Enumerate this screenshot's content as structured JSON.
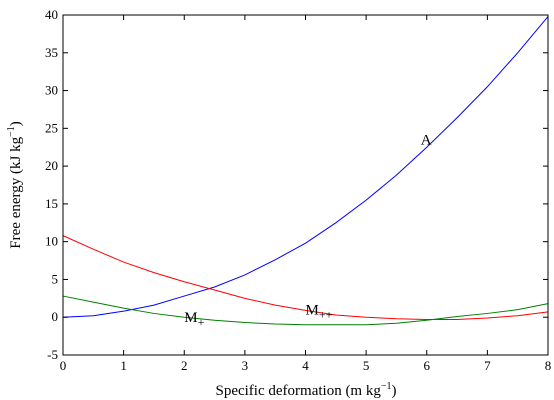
{
  "chart_data": {
    "type": "line",
    "title": "",
    "xlabel": "Specific deformation (m kg",
    "xlabel_sup": "−1",
    "xlabel_end": ")",
    "ylabel": "Free energy (kJ kg",
    "ylabel_sup": "−1",
    "ylabel_end": ")",
    "xlim": [
      0,
      8
    ],
    "ylim": [
      -5,
      40
    ],
    "xticks": [
      0,
      1,
      2,
      3,
      4,
      5,
      6,
      7,
      8
    ],
    "yticks": [
      -5,
      0,
      5,
      10,
      15,
      20,
      25,
      30,
      35,
      40
    ],
    "xtick_labels": [
      "0",
      "1",
      "2",
      "3",
      "4",
      "5",
      "6",
      "7",
      "8"
    ],
    "ytick_labels": [
      "-5",
      "0",
      "5",
      "10",
      "15",
      "20",
      "25",
      "30",
      "35",
      "40"
    ],
    "grid": false,
    "legend": "none",
    "x": [
      0,
      0.5,
      1,
      1.5,
      2,
      2.5,
      3,
      3.5,
      4,
      4.5,
      5,
      5.5,
      6,
      6.5,
      7,
      7.5,
      8
    ],
    "series": [
      {
        "color": "#0000ff",
        "values": [
          0,
          0.2,
          0.8,
          1.6,
          2.8,
          4.0,
          5.6,
          7.6,
          9.8,
          12.5,
          15.5,
          18.8,
          22.5,
          26.4,
          30.5,
          35.0,
          39.8
        ]
      },
      {
        "color": "#ff0000",
        "values": [
          10.8,
          9.0,
          7.3,
          5.9,
          4.7,
          3.6,
          2.5,
          1.6,
          0.9,
          0.3,
          0.0,
          -0.2,
          -0.3,
          -0.3,
          -0.1,
          0.2,
          0.7
        ]
      },
      {
        "color": "#008000",
        "values": [
          2.8,
          2.0,
          1.2,
          0.5,
          0.0,
          -0.4,
          -0.7,
          -0.9,
          -1.0,
          -1.0,
          -1.0,
          -0.8,
          -0.4,
          0.1,
          0.5,
          1.0,
          1.8
        ]
      }
    ],
    "annotations": [
      {
        "text": "A",
        "x": 5.9,
        "y": 23.5
      },
      {
        "text": "M",
        "sub": "+",
        "x": 2.0,
        "y": 0.0
      },
      {
        "text": "M",
        "sub": "++",
        "x": 4.0,
        "y": 1.0
      }
    ]
  }
}
